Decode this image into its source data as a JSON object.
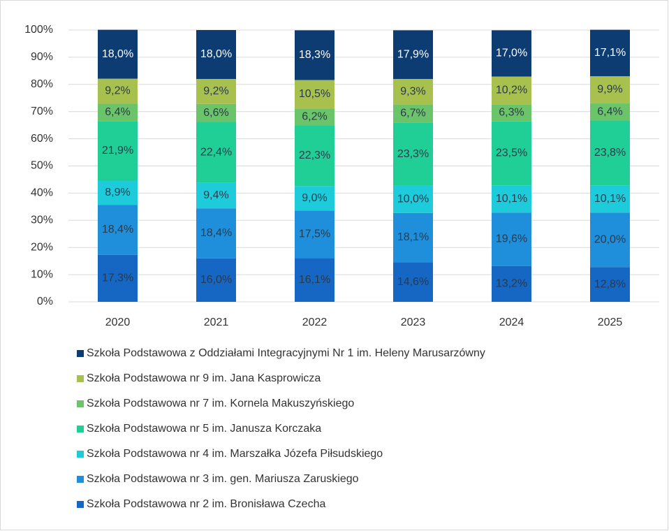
{
  "chart_data": {
    "type": "stacked_bar",
    "categories": [
      "2020",
      "2021",
      "2022",
      "2023",
      "2024",
      "2025"
    ],
    "series": [
      {
        "name": "Szkoła Podstawowa nr 2 im. Bronisława Czecha",
        "color": "#1666c4",
        "label_color": "#2b3a4a",
        "values": [
          17.3,
          16.0,
          16.1,
          14.6,
          13.2,
          12.8
        ],
        "value_labels": [
          "17,3%",
          "16,0%",
          "16,1%",
          "14,6%",
          "13,2%",
          "12,8%"
        ]
      },
      {
        "name": "Szkoła Podstawowa nr 3 im. gen. Mariusza Zaruskiego",
        "color": "#1f8fdb",
        "label_color": "#2b3a4a",
        "values": [
          18.4,
          18.4,
          17.5,
          18.1,
          19.6,
          20.0
        ],
        "value_labels": [
          "18,4%",
          "18,4%",
          "17,5%",
          "18,1%",
          "19,6%",
          "20,0%"
        ]
      },
      {
        "name": "Szkoła Podstawowa nr 4 im. Marszałka Józefa Piłsudskiego",
        "color": "#1ecbdb",
        "label_color": "#2b3a4a",
        "values": [
          8.9,
          9.4,
          9.0,
          10.0,
          10.1,
          10.1
        ],
        "value_labels": [
          "8,9%",
          "9,4%",
          "9,0%",
          "10,0%",
          "10,1%",
          "10,1%"
        ]
      },
      {
        "name": "Szkoła Podstawowa nr 5 im. Janusza Korczaka",
        "color": "#1fcf95",
        "label_color": "#2b3a4a",
        "values": [
          21.9,
          22.4,
          22.3,
          23.3,
          23.5,
          23.8
        ],
        "value_labels": [
          "21,9%",
          "22,4%",
          "22,3%",
          "23,3%",
          "23,5%",
          "23,8%"
        ]
      },
      {
        "name": "Szkoła Podstawowa nr 7 im. Kornela Makuszyńskiego",
        "color": "#6cc46a",
        "label_color": "#2b3a4a",
        "values": [
          6.4,
          6.6,
          6.2,
          6.7,
          6.3,
          6.4
        ],
        "value_labels": [
          "6,4%",
          "6,6%",
          "6,2%",
          "6,7%",
          "6,3%",
          "6,4%"
        ]
      },
      {
        "name": "Szkoła Podstawowa nr 9 im. Jana Kasprowicza",
        "color": "#a8c14e",
        "label_color": "#2b3a4a",
        "values": [
          9.2,
          9.2,
          10.5,
          9.3,
          10.2,
          9.9
        ],
        "value_labels": [
          "9,2%",
          "9,2%",
          "10,5%",
          "9,3%",
          "10,2%",
          "9,9%"
        ]
      },
      {
        "name": "Szkoła Podstawowa z Oddziałami Integracyjnymi Nr 1 im. Heleny Marusarzówny",
        "color": "#0d3c73",
        "label_color": "#ffffff",
        "values": [
          18.0,
          18.0,
          18.3,
          17.9,
          17.0,
          17.1
        ],
        "value_labels": [
          "18,0%",
          "18,0%",
          "18,3%",
          "17,9%",
          "17,0%",
          "17,1%"
        ]
      }
    ],
    "ylim": [
      0,
      100
    ],
    "yticks": [
      {
        "value": 0,
        "label": "0%"
      },
      {
        "value": 10,
        "label": "10%"
      },
      {
        "value": 20,
        "label": "20%"
      },
      {
        "value": 30,
        "label": "30%"
      },
      {
        "value": 40,
        "label": "40%"
      },
      {
        "value": 50,
        "label": "50%"
      },
      {
        "value": 60,
        "label": "60%"
      },
      {
        "value": 70,
        "label": "70%"
      },
      {
        "value": 80,
        "label": "80%"
      },
      {
        "value": 90,
        "label": "90%"
      },
      {
        "value": 100,
        "label": "100%"
      }
    ],
    "grid": true,
    "legend": "bottom"
  }
}
